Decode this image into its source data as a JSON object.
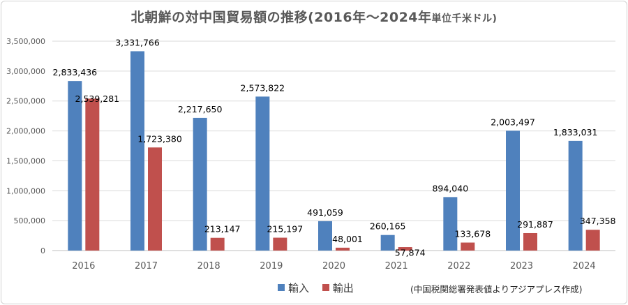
{
  "chart_data": {
    "type": "bar",
    "title": "北朝鮮の対中国貿易額の推移(2016年～2024年",
    "title_unit": "単位千米ドル)",
    "categories": [
      "2016",
      "2017",
      "2018",
      "2019",
      "2020",
      "2021",
      "2022",
      "2023",
      "2024"
    ],
    "series": [
      {
        "name": "輸入",
        "color": "#4f81bd",
        "values": [
          2833436,
          3331766,
          2217650,
          2573822,
          491059,
          260165,
          894040,
          2003497,
          1833031
        ],
        "labels": [
          "2,833,436",
          "3,331,766",
          "2,217,650",
          "2,573,822",
          "491,059",
          "260,165",
          "894,040",
          "2,003,497",
          "1,833,031"
        ]
      },
      {
        "name": "輸出",
        "color": "#c0504d",
        "values": [
          2539281,
          1723380,
          213147,
          215197,
          48001,
          57874,
          133678,
          291887,
          347358
        ],
        "labels": [
          "2,539,281",
          "1,723,380",
          "213,147",
          "215,197",
          "48,001",
          "57,874",
          "133,678",
          "291,887",
          "347,358"
        ]
      }
    ],
    "ylim": [
      0,
      3500000
    ],
    "yticks": [
      0,
      500000,
      1000000,
      1500000,
      2000000,
      2500000,
      3000000,
      3500000
    ],
    "ytick_labels": [
      "0",
      "500,000",
      "1,000,000",
      "1,500,000",
      "2,000,000",
      "2,500,000",
      "3,000,000",
      "3,500,000"
    ],
    "grid": true,
    "legend": "bottom",
    "source_note": "(中国税関総署発表値よりアジアプレス作成)"
  }
}
